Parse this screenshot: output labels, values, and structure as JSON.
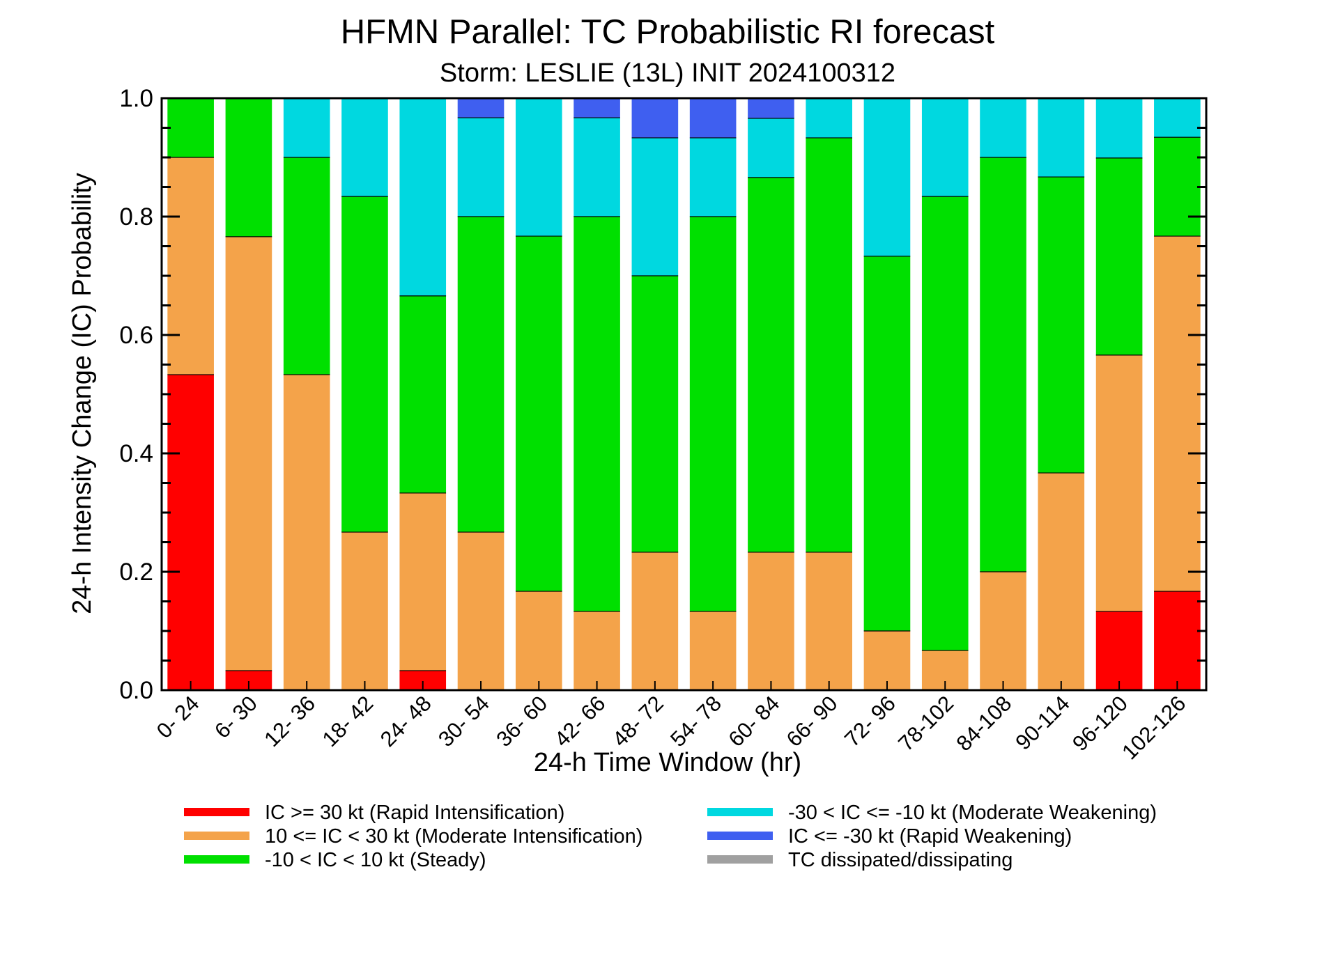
{
  "chart_data": {
    "type": "bar",
    "stacked": true,
    "title": "HFMN Parallel: TC Probabilistic RI forecast",
    "subtitle": "Storm: LESLIE (13L) INIT 2024100312",
    "xlabel": "24-h Time Window (hr)",
    "ylabel": "24-h Intensity Change (IC) Probability",
    "ylim": [
      0,
      1
    ],
    "y_ticks": [
      "0.0",
      "0.2",
      "0.4",
      "0.6",
      "0.8",
      "1.0"
    ],
    "categories": [
      "0- 24",
      "6- 30",
      "12- 36",
      "18- 42",
      "24- 48",
      "30- 54",
      "36- 60",
      "42- 66",
      "48- 72",
      "54- 78",
      "60- 84",
      "66- 90",
      "72- 96",
      "78-102",
      "84-108",
      "90-114",
      "96-120",
      "102-126"
    ],
    "series": [
      {
        "name": "IC >= 30 kt (Rapid Intensification)",
        "color": "#ff0000",
        "values": [
          0.533,
          0.033,
          0,
          0,
          0.033,
          0,
          0,
          0,
          0,
          0,
          0,
          0,
          0,
          0,
          0,
          0,
          0.133,
          0.167
        ]
      },
      {
        "name": "10 <= IC < 30 kt (Moderate Intensification)",
        "color": "#f4a34a",
        "values": [
          0.367,
          0.733,
          0.533,
          0.267,
          0.3,
          0.267,
          0.167,
          0.133,
          0.233,
          0.133,
          0.233,
          0.233,
          0.1,
          0.067,
          0.2,
          0.367,
          0.433,
          0.6
        ]
      },
      {
        "name": "-10 < IC < 10 kt (Steady)",
        "color": "#00e000",
        "values": [
          0.1,
          0.233,
          0.367,
          0.567,
          0.333,
          0.533,
          0.6,
          0.667,
          0.467,
          0.667,
          0.633,
          0.7,
          0.633,
          0.767,
          0.7,
          0.5,
          0.333,
          0.167
        ]
      },
      {
        "name": "-30 < IC <= -10 kt (Moderate Weakening)",
        "color": "#00d8e0",
        "values": [
          0,
          0,
          0.1,
          0.167,
          0.333,
          0.167,
          0.233,
          0.167,
          0.233,
          0.133,
          0.1,
          0.067,
          0.267,
          0.167,
          0.1,
          0.133,
          0.1,
          0.067
        ]
      },
      {
        "name": "IC <= -30 kt (Rapid Weakening)",
        "color": "#3f5ff0",
        "values": [
          0,
          0,
          0,
          0,
          0,
          0.033,
          0,
          0.033,
          0.067,
          0.067,
          0.033,
          0,
          0,
          0,
          0,
          0,
          0,
          0
        ]
      },
      {
        "name": "TC dissipated/dissipating",
        "color": "#a0a0a0",
        "values": [
          0,
          0,
          0,
          0,
          0,
          0,
          0,
          0,
          0,
          0,
          0,
          0,
          0,
          0,
          0,
          0,
          0,
          0
        ]
      }
    ],
    "legend_position": "bottom",
    "grid": false
  }
}
